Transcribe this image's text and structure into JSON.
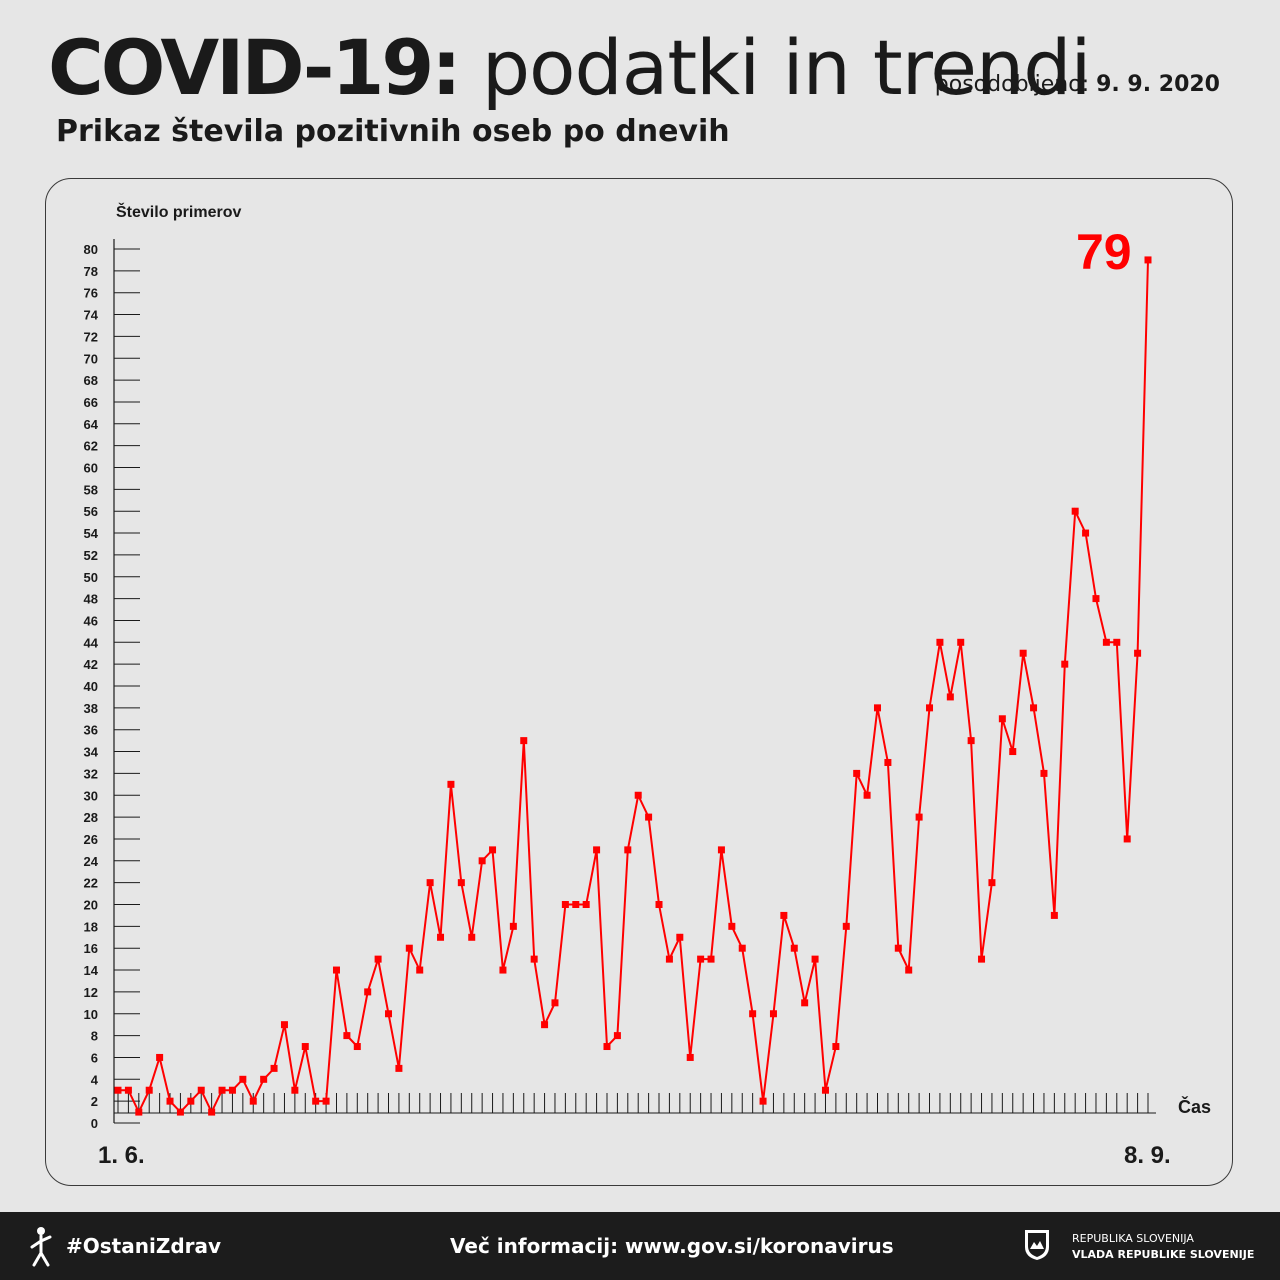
{
  "header": {
    "title_bold": "COVID-19:",
    "title_light": "podatki in trendi",
    "updated_label": "posodobljeno:",
    "updated_date": "9. 9. 2020",
    "subtitle": "Prikaz števila pozitivnih oseb po dnevih"
  },
  "chart_data": {
    "type": "line",
    "ylabel": "Število primerov",
    "xlabel": "Čas",
    "x_start_label": "1. 6.",
    "x_end_label": "8. 9.",
    "ylim": [
      0,
      80
    ],
    "yticks": [
      0,
      2,
      4,
      6,
      8,
      10,
      12,
      14,
      16,
      18,
      20,
      22,
      24,
      26,
      28,
      30,
      32,
      34,
      36,
      38,
      40,
      42,
      44,
      46,
      48,
      50,
      52,
      54,
      56,
      58,
      60,
      62,
      64,
      66,
      68,
      70,
      72,
      74,
      76,
      78,
      80
    ],
    "highlight_value": "79",
    "line_color": "#ff0000",
    "series": [
      {
        "values": [
          3,
          3,
          1,
          3,
          6,
          2,
          1,
          2,
          3,
          1,
          3,
          3,
          4,
          2,
          4,
          5,
          9,
          3,
          7,
          2,
          2,
          14,
          8,
          7,
          12,
          15,
          10,
          5,
          16,
          14,
          22,
          17,
          31,
          22,
          17,
          24,
          25,
          14,
          18,
          35,
          15,
          9,
          11,
          20,
          20,
          20,
          25,
          7,
          8,
          25,
          30,
          28,
          20,
          15,
          17,
          6,
          15,
          15,
          25,
          18,
          16,
          10,
          2,
          10,
          19,
          16,
          11,
          15,
          3,
          7,
          18,
          32,
          30,
          38,
          33,
          16,
          14,
          28,
          38,
          44,
          39,
          44,
          35,
          15,
          22,
          37,
          34,
          43,
          38,
          32,
          19,
          42,
          56,
          54,
          48,
          44,
          44,
          26,
          43,
          79
        ]
      }
    ]
  },
  "footer": {
    "hashtag": "#OstaniZdrav",
    "info": "Več informacij: www.gov.si/koronavirus",
    "gov_line1": "REPUBLIKA SLOVENIJA",
    "gov_line2": "VLADA REPUBLIKE SLOVENIJE"
  }
}
